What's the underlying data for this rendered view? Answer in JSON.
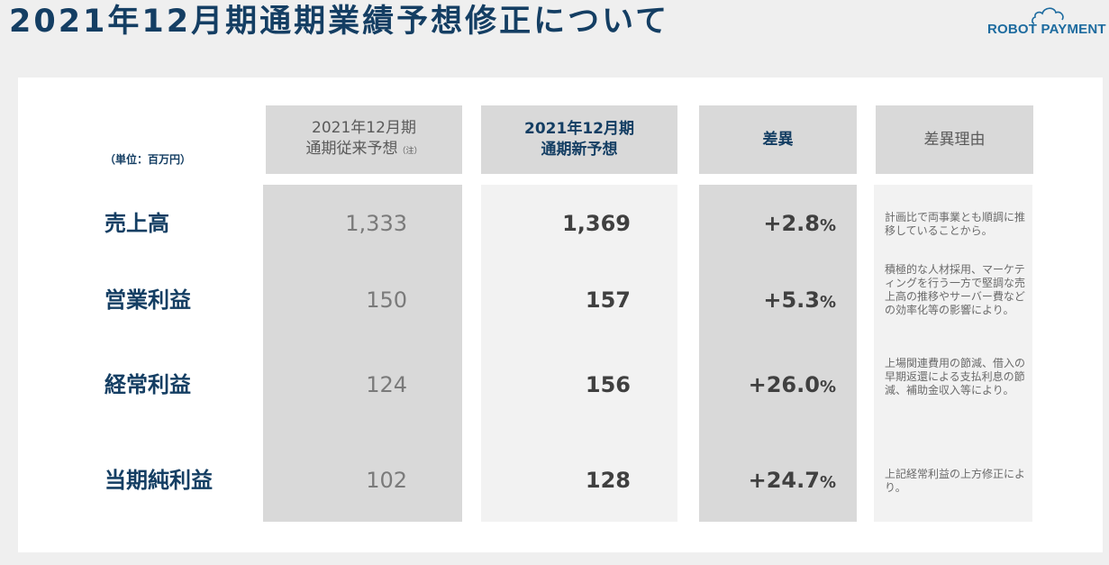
{
  "header": {
    "title": "2021年12月期通期業績予想修正について",
    "brand": "ROBOT PAYMENT"
  },
  "table": {
    "unit": "（単位：百万円）",
    "columns": {
      "prev_line1": "2021年12月期",
      "prev_line2": "通期従来予想",
      "prev_note": "（注）",
      "new_line1": "2021年12月期",
      "new_line2": "通期新予想",
      "diff": "差異",
      "reason": "差異理由"
    },
    "rows": [
      {
        "label": "売上高",
        "prev": "1,333",
        "new": "1,369",
        "diff": "+2.8",
        "pct": "%",
        "reason": "計画比で両事業とも順調に推移していることから。"
      },
      {
        "label": "営業利益",
        "prev": "150",
        "new": "157",
        "diff": "+5.3",
        "pct": "%",
        "reason": "積極的な人材採用、マーケティングを行う一方で堅調な売上高の推移やサーバー費などの効率化等の影響により。"
      },
      {
        "label": "経常利益",
        "prev": "124",
        "new": "156",
        "diff": "+26.0",
        "pct": "%",
        "reason": "上場関連費用の節減、借入の早期返還による支払利息の節減、補助金収入等により。"
      },
      {
        "label": "当期純利益",
        "prev": "102",
        "new": "128",
        "diff": "+24.7",
        "pct": "%",
        "reason": "上記経常利益の上方修正により。"
      }
    ]
  },
  "colors": {
    "title": "#143e63",
    "header_bg": "#d9d9d9",
    "prev_col_bg": "#d9d9d9",
    "new_col_bg": "#f2f2f2",
    "diff_col_bg": "#d9d9d9",
    "reason_col_bg": "#f2f2f2"
  }
}
